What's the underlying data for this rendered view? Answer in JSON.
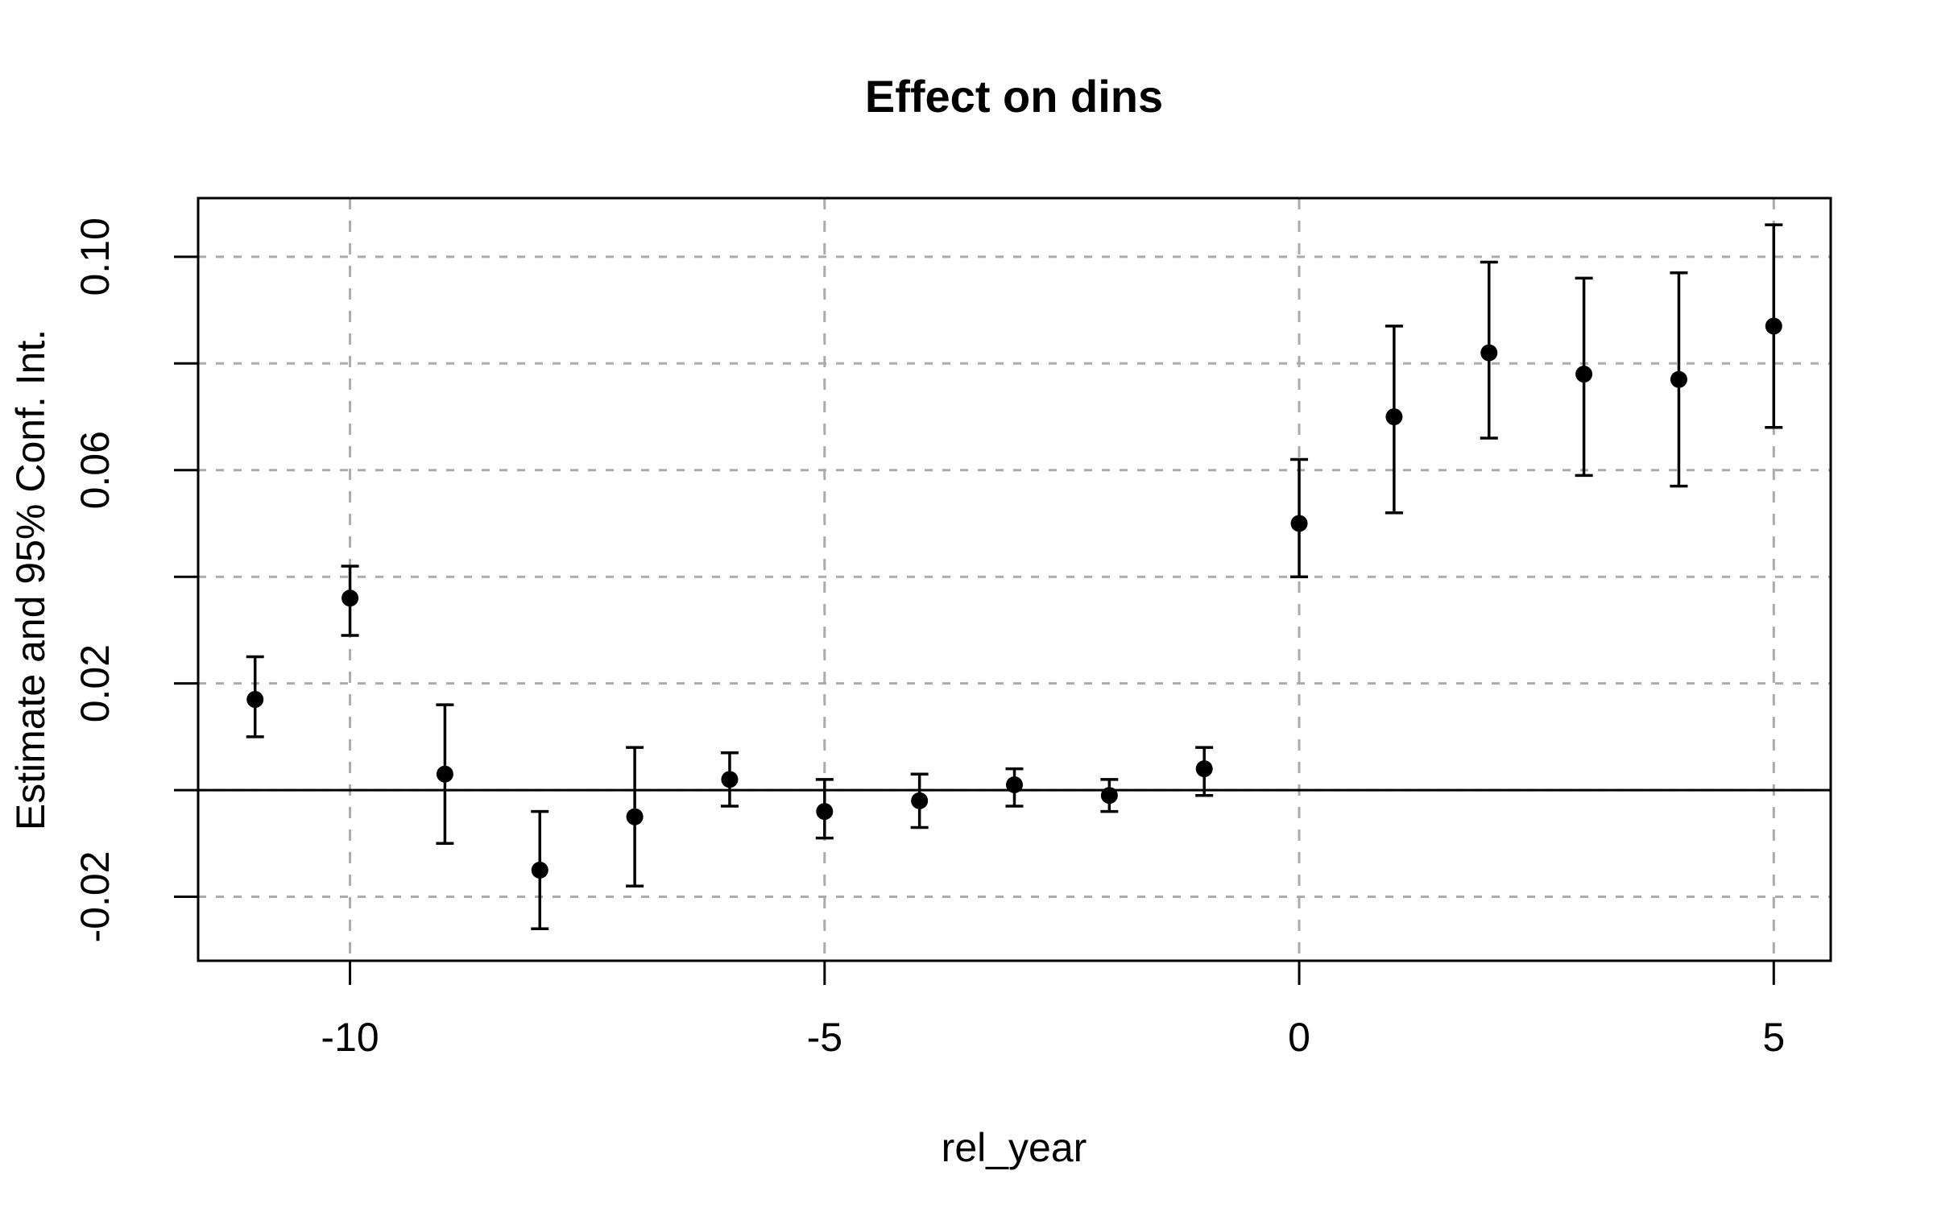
{
  "page": {
    "background": "#ffffff"
  },
  "chart_data": {
    "type": "scatter",
    "subtype": "point-estimates-with-95ci-errorbars",
    "title": "Effect on dins",
    "xlabel": "rel_year",
    "ylabel": "Estimate and 95% Conf. Int.",
    "legend": null,
    "grid": true,
    "zero_line": 0,
    "xlim": [
      -11.6,
      5.6
    ],
    "ylim": [
      -0.032,
      0.111
    ],
    "x_ticks": [
      {
        "value": -10,
        "label": "-10"
      },
      {
        "value": -5,
        "label": "-5"
      },
      {
        "value": 0,
        "label": "0"
      },
      {
        "value": 5,
        "label": "5"
      }
    ],
    "y_ticks": [
      {
        "value": -0.02,
        "label": "-0.02"
      },
      {
        "value": 0.0,
        "label": ""
      },
      {
        "value": 0.02,
        "label": "0.02"
      },
      {
        "value": 0.04,
        "label": ""
      },
      {
        "value": 0.06,
        "label": "0.06"
      },
      {
        "value": 0.08,
        "label": ""
      },
      {
        "value": 0.1,
        "label": "0.10"
      }
    ],
    "series": [
      {
        "name": "estimate",
        "marker": "filled-circle",
        "points": [
          {
            "x": -11,
            "estimate": 0.017,
            "ci_low": 0.01,
            "ci_high": 0.025
          },
          {
            "x": -10,
            "estimate": 0.036,
            "ci_low": 0.029,
            "ci_high": 0.042
          },
          {
            "x": -9,
            "estimate": 0.003,
            "ci_low": -0.01,
            "ci_high": 0.016
          },
          {
            "x": -8,
            "estimate": -0.015,
            "ci_low": -0.026,
            "ci_high": -0.004
          },
          {
            "x": -7,
            "estimate": -0.005,
            "ci_low": -0.018,
            "ci_high": 0.008
          },
          {
            "x": -6,
            "estimate": 0.002,
            "ci_low": -0.003,
            "ci_high": 0.007
          },
          {
            "x": -5,
            "estimate": -0.004,
            "ci_low": -0.009,
            "ci_high": 0.002
          },
          {
            "x": -4,
            "estimate": -0.002,
            "ci_low": -0.007,
            "ci_high": 0.003
          },
          {
            "x": -3,
            "estimate": 0.001,
            "ci_low": -0.003,
            "ci_high": 0.004
          },
          {
            "x": -2,
            "estimate": -0.001,
            "ci_low": -0.004,
            "ci_high": 0.002
          },
          {
            "x": -1,
            "estimate": 0.004,
            "ci_low": -0.001,
            "ci_high": 0.008
          },
          {
            "x": 0,
            "estimate": 0.05,
            "ci_low": 0.04,
            "ci_high": 0.062
          },
          {
            "x": 1,
            "estimate": 0.07,
            "ci_low": 0.052,
            "ci_high": 0.087
          },
          {
            "x": 2,
            "estimate": 0.082,
            "ci_low": 0.066,
            "ci_high": 0.099
          },
          {
            "x": 3,
            "estimate": 0.078,
            "ci_low": 0.059,
            "ci_high": 0.096
          },
          {
            "x": 4,
            "estimate": 0.077,
            "ci_low": 0.057,
            "ci_high": 0.097
          },
          {
            "x": 5,
            "estimate": 0.087,
            "ci_low": 0.068,
            "ci_high": 0.106
          }
        ]
      }
    ],
    "colors": {
      "point": "#000000",
      "error_bar": "#000000",
      "grid": "#ababab",
      "axis": "#000000",
      "zero_line": "#000000",
      "background": "#ffffff"
    }
  }
}
